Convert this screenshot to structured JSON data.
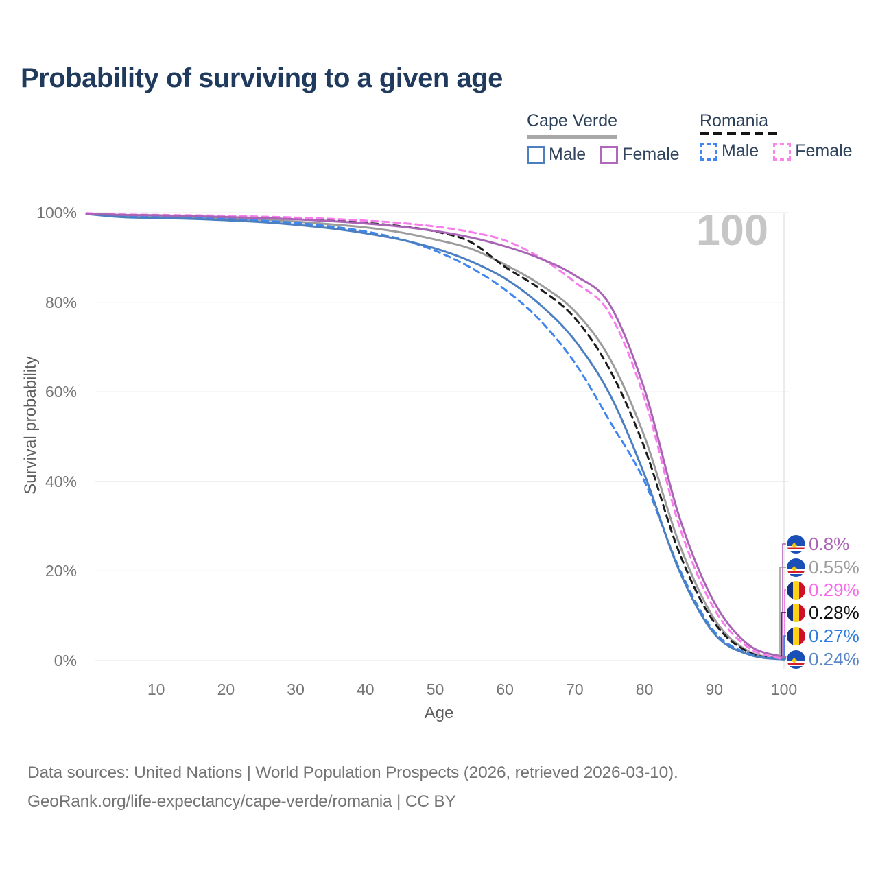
{
  "title": "Probability of surviving to a given age",
  "watermark": "100",
  "legend": {
    "groups": [
      {
        "country": "Cape Verde",
        "line_style": "solid",
        "underline_color": "#a8a8a8",
        "items": [
          {
            "label": "Male",
            "color": "#4c7fc0"
          },
          {
            "label": "Female",
            "color": "#b168bc"
          }
        ]
      },
      {
        "country": "Romania",
        "line_style": "dashed",
        "underline_color": "#141414",
        "items": [
          {
            "label": "Male",
            "color": "#4285f4"
          },
          {
            "label": "Female",
            "color": "#fb84ea"
          }
        ]
      }
    ]
  },
  "axes": {
    "y_label": "Survival probability",
    "y_ticks": [
      "100%",
      "80%",
      "60%",
      "40%",
      "20%",
      "0%"
    ],
    "y_tick_values": [
      100,
      80,
      60,
      40,
      20,
      0
    ],
    "x_label": "Age",
    "x_ticks": [
      "10",
      "20",
      "30",
      "40",
      "50",
      "60",
      "70",
      "80",
      "90",
      "100"
    ],
    "x_tick_values": [
      10,
      20,
      30,
      40,
      50,
      60,
      70,
      80,
      90,
      100
    ]
  },
  "hover_labels": [
    {
      "value": "0.8%",
      "flag": "cape-verde",
      "color": "#a964b5"
    },
    {
      "value": "0.55%",
      "flag": "cape-verde",
      "color": "#9c9c9c"
    },
    {
      "value": "0.29%",
      "flag": "romania",
      "color": "#f769ea"
    },
    {
      "value": "0.28%",
      "flag": "romania",
      "color": "#111111"
    },
    {
      "value": "0.27%",
      "flag": "romania",
      "color": "#2f7ce0"
    },
    {
      "value": "0.24%",
      "flag": "cape-verde",
      "color": "#5b87c6"
    }
  ],
  "footer": {
    "line1": "Data sources: United Nations | World Population Prospects (2026, retrieved 2026-03-10).",
    "line2": "GeoRank.org/life-expectancy/cape-verde/romania | CC BY"
  },
  "chart_data": {
    "type": "line",
    "title": "Probability of surviving to a given age",
    "xlabel": "Age",
    "ylabel": "Survival probability",
    "xlim": [
      0,
      100
    ],
    "ylim": [
      0,
      100
    ],
    "grid": "horizontal",
    "hover_age": 100,
    "x": [
      0,
      5,
      10,
      15,
      20,
      25,
      30,
      35,
      40,
      45,
      50,
      55,
      60,
      65,
      70,
      75,
      80,
      85,
      90,
      95,
      100
    ],
    "series": [
      {
        "name": "Cape Verde",
        "color": "#9c9c9c",
        "dash": "solid",
        "end_label": "0.55%",
        "values": [
          99.8,
          99.3,
          99.2,
          99.0,
          98.7,
          98.4,
          98.0,
          97.4,
          96.7,
          95.6,
          94.0,
          92.0,
          88.4,
          84.0,
          78.0,
          67.5,
          50.0,
          26.0,
          9.3,
          2.0,
          0.55
        ]
      },
      {
        "name": "Romania",
        "color": "#1b1b1b",
        "dash": "dashed",
        "end_label": "0.28%",
        "values": [
          99.8,
          99.5,
          99.4,
          99.3,
          99.1,
          98.9,
          98.6,
          98.2,
          97.7,
          97.0,
          95.8,
          93.5,
          87.9,
          83.0,
          76.5,
          65.0,
          47.5,
          24.0,
          8.5,
          1.8,
          0.28
        ]
      },
      {
        "name": "Romania Male",
        "color": "#3f86f0",
        "dash": "dashed",
        "end_label": "0.27%",
        "values": [
          99.8,
          99.3,
          99.1,
          98.9,
          98.6,
          98.2,
          97.7,
          96.9,
          95.8,
          94.1,
          91.5,
          87.8,
          82.8,
          76.0,
          66.5,
          53.5,
          40.0,
          20.5,
          6.5,
          1.5,
          0.27
        ]
      },
      {
        "name": "Cape Verde Male",
        "color": "#4c7fc0",
        "dash": "solid",
        "end_label": "0.24%",
        "values": [
          99.7,
          99.0,
          98.8,
          98.6,
          98.3,
          97.9,
          97.3,
          96.5,
          95.4,
          94.0,
          92.0,
          89.2,
          85.3,
          79.5,
          71.5,
          59.5,
          41.5,
          20.0,
          6.0,
          1.3,
          0.24
        ]
      },
      {
        "name": "Romania Female",
        "color": "#f97ced",
        "dash": "dashed",
        "end_label": "0.29%",
        "values": [
          99.9,
          99.6,
          99.5,
          99.4,
          99.3,
          99.1,
          98.9,
          98.6,
          98.2,
          97.7,
          96.9,
          95.7,
          93.8,
          90.0,
          84.5,
          77.5,
          58.5,
          30.0,
          11.5,
          2.8,
          0.29
        ]
      },
      {
        "name": "Cape Verde Female",
        "color": "#a964b5",
        "dash": "solid",
        "end_label": "0.8%",
        "values": [
          99.8,
          99.5,
          99.4,
          99.2,
          99.0,
          98.8,
          98.5,
          98.1,
          97.6,
          96.9,
          95.9,
          94.5,
          92.5,
          89.8,
          86.0,
          79.5,
          60.5,
          32.0,
          13.0,
          3.4,
          0.8
        ]
      }
    ]
  }
}
